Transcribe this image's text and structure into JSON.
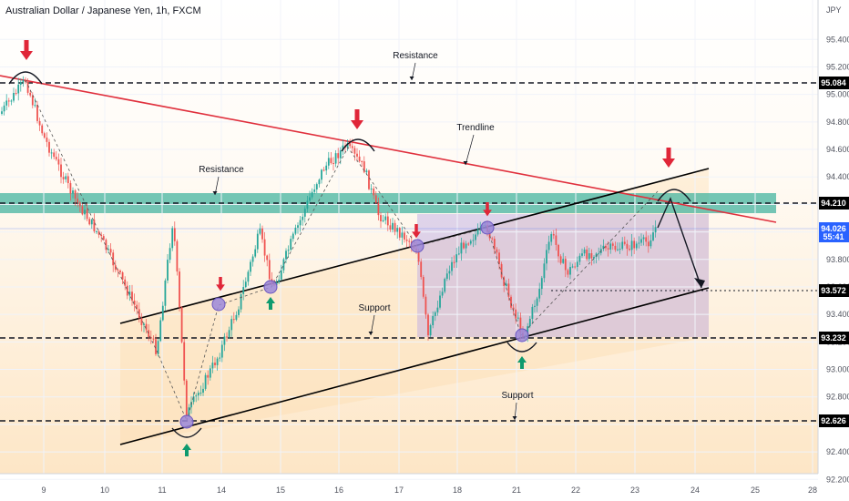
{
  "header": {
    "title": "Australian Dollar / Japanese Yen, 1h, FXCM",
    "currency": "JPY"
  },
  "colors": {
    "up": "#26a69a",
    "down": "#ef5350",
    "trendline": "#e0303d",
    "channel": "#000000",
    "zone": "#46b4a0",
    "arrow_down": "#e02638",
    "arrow_up": "#0e9a6e",
    "price_badge": "#2962ff",
    "level_badge": "#000000"
  },
  "chart_data": {
    "type": "candlestick",
    "x_axis": {
      "ticks": [
        "9",
        "10",
        "11",
        "14",
        "15",
        "16",
        "17",
        "18",
        "21",
        "22",
        "23",
        "24",
        "25",
        "28"
      ]
    },
    "y_axis": {
      "ticks": [
        "95.400",
        "95.200",
        "95.000",
        "94.800",
        "94.600",
        "94.400",
        "94.200",
        "94.000",
        "93.800",
        "93.600",
        "93.400",
        "93.200",
        "93.000",
        "92.800",
        "92.600",
        "92.400",
        "92.200"
      ],
      "range": [
        92.15,
        95.6
      ]
    },
    "levels": [
      {
        "label": "95.084",
        "value": 95.084
      },
      {
        "label": "94.210",
        "value": 94.21
      },
      {
        "label": "93.572",
        "value": 93.572
      },
      {
        "label": "93.232",
        "value": 93.232
      },
      {
        "label": "92.626",
        "value": 92.626
      }
    ],
    "current_price": {
      "value": "94.026",
      "countdown": "55:41"
    },
    "annotations": [
      "Resistance",
      "Trendline",
      "Resistance",
      "Support",
      "Support"
    ]
  }
}
